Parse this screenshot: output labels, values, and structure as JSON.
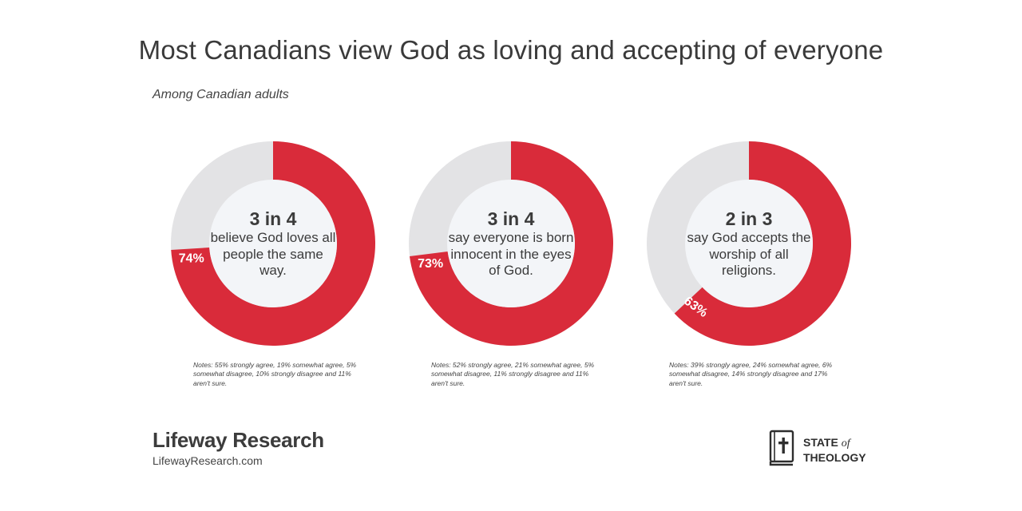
{
  "header": {
    "title": "Most Canadians view God as loving and accepting of everyone",
    "subtitle": "Among Canadian adults"
  },
  "colors": {
    "accent": "#d92b3a",
    "remainder": "#e3e3e5",
    "center": "#f3f5f8"
  },
  "chart_data": [
    {
      "type": "pie",
      "donut": true,
      "value": 74,
      "value_label": "74%",
      "headline": "3 in 4",
      "description": "believe God loves all people the same way.",
      "note": "Notes: 55% strongly agree, 19% somewhat agree, 5% somewhat disagree, 10% strongly disagree and 11% aren't sure."
    },
    {
      "type": "pie",
      "donut": true,
      "value": 73,
      "value_label": "73%",
      "headline": "3 in 4",
      "description": "say everyone is born innocent in the eyes of God.",
      "note": "Notes: 52% strongly agree, 21% somewhat agree, 5% somewhat disagree, 11% strongly disagree and 11% aren't sure."
    },
    {
      "type": "pie",
      "donut": true,
      "value": 63,
      "value_label": "63%",
      "headline": "2 in 3",
      "description": "say God accepts the worship of all religions.",
      "note": "Notes: 39% strongly agree, 24% somewhat agree, 6% somewhat disagree, 14% strongly disagree and 17% aren't sure."
    }
  ],
  "footer": {
    "brand_name": "Lifeway Research",
    "brand_url": "LifewayResearch.com",
    "partner_line1": "STATE",
    "partner_of": "of",
    "partner_line2": "THEOLOGY",
    "partner_icon": "bible-cross-icon"
  }
}
